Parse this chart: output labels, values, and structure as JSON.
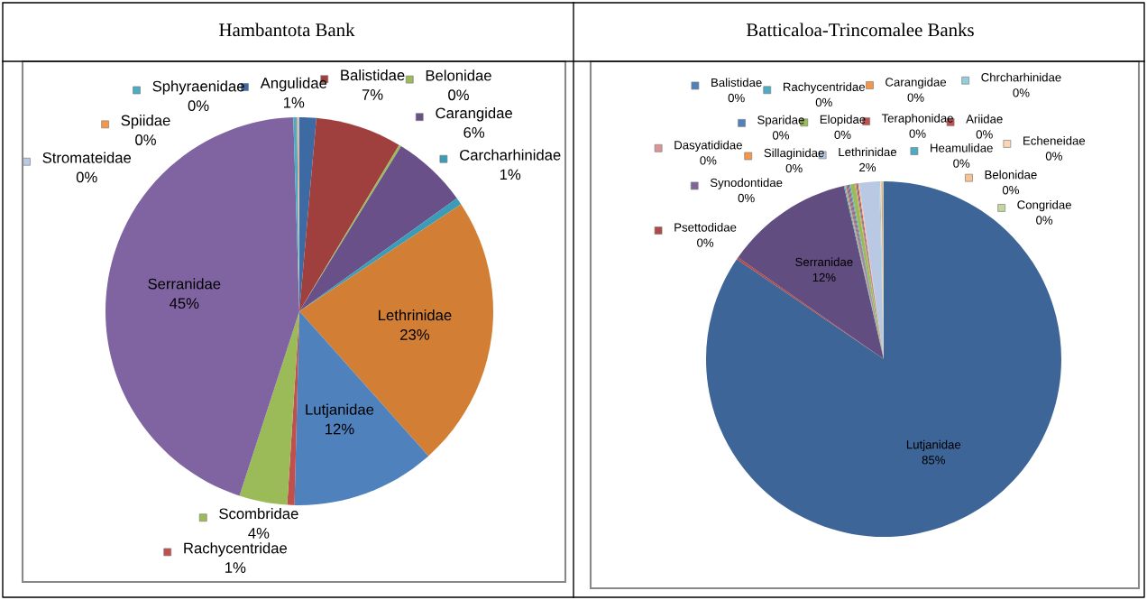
{
  "chart_data": [
    {
      "type": "pie",
      "title": "Hambantota Bank",
      "legend": "bottom left",
      "categories": [
        "Angulidae",
        "Balistidae",
        "Belonidae",
        "Carangidae",
        "Carcharhinidae",
        "Lethrinidae",
        "Lutjanidae",
        "Rachycentridae",
        "Scombridae",
        "Serranidae",
        "Sphyraenidae",
        "Spiidae",
        "Stromateidae"
      ],
      "values": [
        1.4,
        7.2,
        0.2,
        6.3,
        0.6,
        22.7,
        12.0,
        0.6,
        4.0,
        44.5,
        0.3,
        0.1,
        0.1
      ],
      "value_labels": [
        "1%",
        "7%",
        "0%",
        "6%",
        "1%",
        "23%",
        "12%",
        "1%",
        "4%",
        "45%",
        "0%",
        "0%",
        "0%"
      ],
      "colors": [
        "#3e6aa3",
        "#a0403e",
        "#9bbb59",
        "#6a5088",
        "#3a9cb8",
        "#d27f35",
        "#4f81bd",
        "#c0504d",
        "#9bbb59",
        "#8064a2",
        "#4bacc6",
        "#f79646",
        "#b9c9e3"
      ]
    },
    {
      "type": "pie",
      "title": "Batticaloa-Trincomalee Banks",
      "legend": "top",
      "categories": [
        "Lutjanidae",
        "Psettodidae",
        "Serranidae",
        "Rachycentridae",
        "Sillaginidae",
        "Sparidae",
        "Teraphonidae",
        "Synodontidae",
        "Heamulidae",
        "Elopidae",
        "Carangidae",
        "Balistidae",
        "Ariidae",
        "Belonidae",
        "Lethrinidae",
        "Chrcharhinidae",
        "Echeneidae",
        "Dasyatididae",
        "Congridae"
      ],
      "values": [
        84.5,
        0.2,
        11.7,
        0.1,
        0.1,
        0.1,
        0.1,
        0.1,
        0.1,
        0.4,
        0.1,
        0.1,
        0.1,
        0.1,
        1.8,
        0.1,
        0.1,
        0.1,
        0.1
      ],
      "value_labels": [
        "85%",
        "0%",
        "12%",
        "0%",
        "0%",
        "0%",
        "0%",
        "0%",
        "0%",
        "0%",
        "0%",
        "0%",
        "0%",
        "0%",
        "2%",
        "0%",
        "0%",
        "0%",
        "0%"
      ],
      "colors": [
        "#3d6598",
        "#b04a46",
        "#624d80",
        "#4bacc6",
        "#f79646",
        "#4f81bd",
        "#c0504d",
        "#8064a2",
        "#4bacc6",
        "#9bbb59",
        "#f79646",
        "#4f81bd",
        "#c0504d",
        "#fac090",
        "#b9c9e3",
        "#93cddd",
        "#fcd5b5",
        "#d99694",
        "#c3d69b"
      ]
    }
  ]
}
